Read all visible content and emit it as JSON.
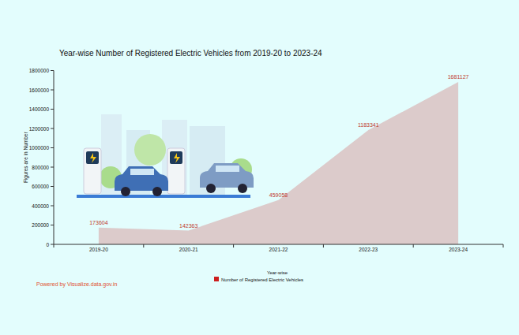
{
  "chart_data": {
    "type": "area",
    "title": "Year-wise Number of Registered Electric Vehicles from 2019-20 to 2023-24",
    "x_label": "Year-wise",
    "y_label": "Figures are in Number",
    "annotations": [
      "Powered by Visualize.data.gov.in"
    ],
    "categories": [
      "2019-20",
      "2020-21",
      "2021-22",
      "2022-23",
      "2023-24"
    ],
    "series": [
      {
        "name": "Number of Registered Electric Vehicles",
        "color": "#dccbcb",
        "values": [
          173604,
          142363,
          459058,
          1183341,
          1681127
        ]
      }
    ],
    "ylim": [
      0,
      1800000
    ],
    "yticks": [
      0,
      200000,
      400000,
      600000,
      800000,
      1000000,
      1200000,
      1400000,
      1600000,
      1800000
    ],
    "grid": false,
    "legend": "bottom",
    "data_labels": true
  }
}
